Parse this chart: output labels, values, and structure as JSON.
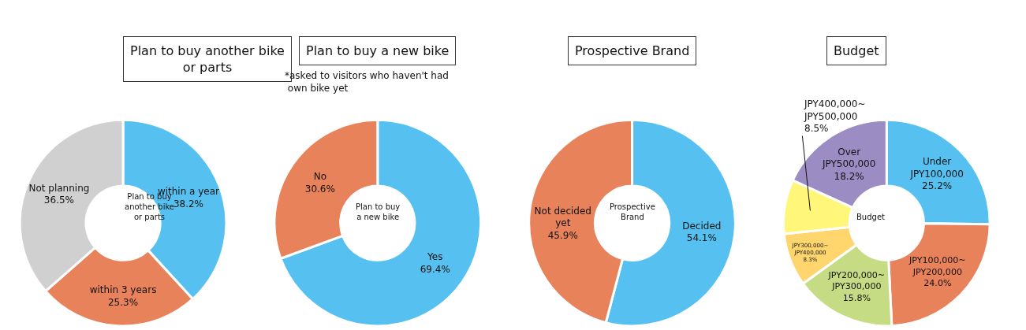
{
  "chart_data": [
    {
      "type": "donut",
      "title": "Plan to buy another bike\nor parts",
      "annotations": [
        "Plan to buy\nanother bike\nor parts"
      ],
      "categories": [
        "within a year",
        "within 3 years",
        "Not planning"
      ],
      "values": [
        38.2,
        25.3,
        36.5
      ],
      "value_labels": [
        "38.2%",
        "25.3%",
        "36.5%"
      ],
      "colors": [
        "#56c1f0",
        "#e8825a",
        "#d0d0d0"
      ]
    },
    {
      "type": "donut",
      "title": "Plan to buy a new bike",
      "annotations": [
        "Plan to buy\na new bike",
        "*asked to visitors who haven't had\n own bike yet"
      ],
      "categories": [
        "Yes",
        "No"
      ],
      "values": [
        69.4,
        30.6
      ],
      "value_labels": [
        "69.4%",
        "30.6%"
      ],
      "colors": [
        "#56c1f0",
        "#e8825a"
      ]
    },
    {
      "type": "donut",
      "title": "Prospective Brand",
      "annotations": [
        "Prospective\nBrand"
      ],
      "categories": [
        "Decided",
        "Not decided\nyet"
      ],
      "values": [
        54.1,
        45.9
      ],
      "value_labels": [
        "54.1%",
        "45.9%"
      ],
      "colors": [
        "#56c1f0",
        "#e8825a"
      ]
    },
    {
      "type": "donut",
      "title": "Budget",
      "annotations": [
        "Budget"
      ],
      "categories": [
        "Under\nJPY100,000",
        "JPY100,000~\nJPY200,000",
        "JPY200,000~\nJPY300,000",
        "JPY300,000~\nJPY400,000",
        "JPY400,000~\nJPY500,000",
        "Over\nJPY500,000"
      ],
      "values": [
        25.2,
        24.0,
        15.8,
        8.3,
        8.5,
        18.2
      ],
      "value_labels": [
        "25.2%",
        "24.0%",
        "15.8%",
        "8.3%",
        "8.5%",
        "18.2%"
      ],
      "colors": [
        "#56c1f0",
        "#e8825a",
        "#c5dc84",
        "#ffd66e",
        "#fff67a",
        "#9b8dc4"
      ]
    }
  ]
}
